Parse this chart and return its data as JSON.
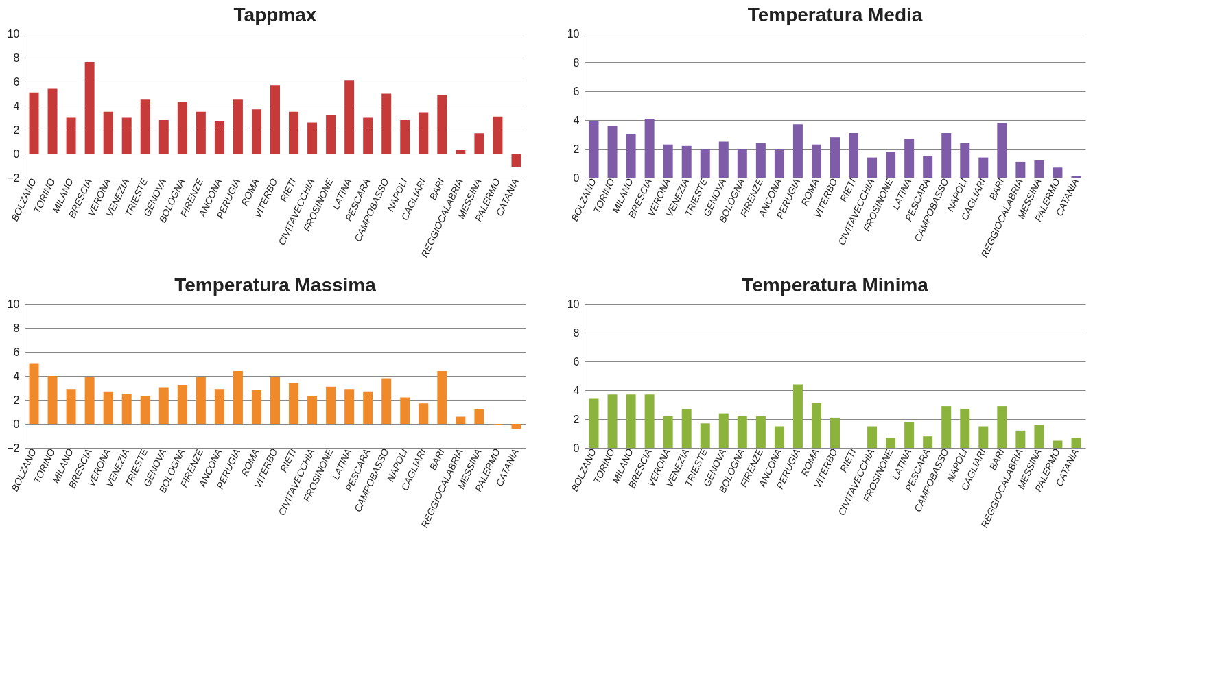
{
  "chart_data": [
    {
      "type": "bar",
      "title": "Tappmax",
      "categories": [
        "BOLZANO",
        "TORINO",
        "MILANO",
        "BRESCIA",
        "VERONA",
        "VENEZIA",
        "TRIESTE",
        "GENOVA",
        "BOLOGNA",
        "FIRENZE",
        "ANCONA",
        "PERUGIA",
        "ROMA",
        "VITERBO",
        "RIETI",
        "CIVITAVECCHIA",
        "FROSINONE",
        "LATINA",
        "PESCARA",
        "CAMPOBASSO",
        "NAPOLI",
        "CAGLIARI",
        "BARI",
        "REGGIOCALABRIA",
        "MESSINA",
        "PALERMO",
        "CATANIA"
      ],
      "values": [
        5.1,
        5.4,
        3.0,
        7.6,
        3.5,
        3.0,
        4.5,
        2.8,
        4.3,
        3.5,
        2.7,
        4.5,
        3.7,
        5.7,
        3.5,
        2.6,
        3.2,
        6.1,
        3.0,
        5.0,
        2.8,
        3.4,
        4.9,
        0.3,
        1.7,
        3.1,
        -1.1
      ],
      "color": "#c63a3a",
      "ylim": [
        -2,
        10
      ],
      "yticks": [
        -2,
        0,
        2,
        4,
        6,
        8,
        10
      ],
      "grid": "y"
    },
    {
      "type": "bar",
      "title": "Temperatura Media",
      "categories": [
        "BOLZANO",
        "TORINO",
        "MILANO",
        "BRESCIA",
        "VERONA",
        "VENEZIA",
        "TRIESTE",
        "GENOVA",
        "BOLOGNA",
        "FIRENZE",
        "ANCONA",
        "PERUGIA",
        "ROMA",
        "VITERBO",
        "RIETI",
        "CIVITAVECCHIA",
        "FROSINONE",
        "LATINA",
        "PESCARA",
        "CAMPOBASSO",
        "NAPOLI",
        "CAGLIARI",
        "BARI",
        "REGGIOCALABRIA",
        "MESSINA",
        "PALERMO",
        "CATANIA"
      ],
      "values": [
        3.9,
        3.6,
        3.0,
        4.1,
        2.3,
        2.2,
        2.0,
        2.5,
        2.0,
        2.4,
        2.0,
        3.7,
        2.3,
        2.8,
        3.1,
        1.4,
        1.8,
        2.7,
        1.5,
        3.1,
        2.4,
        1.4,
        3.8,
        1.1,
        1.2,
        0.7,
        0.1
      ],
      "color": "#7e5ca8",
      "ylim": [
        0,
        10
      ],
      "yticks": [
        0,
        2,
        4,
        6,
        8,
        10
      ],
      "grid": "y"
    },
    {
      "type": "bar",
      "title": "Temperatura Massima",
      "categories": [
        "BOLZANO",
        "TORINO",
        "MILANO",
        "BRESCIA",
        "VERONA",
        "VENEZIA",
        "TRIESTE",
        "GENOVA",
        "BOLOGNA",
        "FIRENZE",
        "ANCONA",
        "PERUGIA",
        "ROMA",
        "VITERBO",
        "RIETI",
        "CIVITAVECCHIA",
        "FROSINONE",
        "LATINA",
        "PESCARA",
        "CAMPOBASSO",
        "NAPOLI",
        "CAGLIARI",
        "BARI",
        "REGGIOCALABRIA",
        "MESSINA",
        "PALERMO",
        "CATANIA"
      ],
      "values": [
        5.0,
        4.0,
        2.9,
        3.9,
        2.7,
        2.5,
        2.3,
        3.0,
        3.2,
        3.9,
        2.9,
        4.4,
        2.8,
        3.9,
        3.4,
        2.3,
        3.1,
        2.9,
        2.7,
        3.8,
        2.2,
        1.7,
        4.4,
        0.6,
        1.2,
        -0.05,
        -0.4
      ],
      "color": "#f0892a",
      "ylim": [
        -2,
        10
      ],
      "yticks": [
        -2,
        0,
        2,
        4,
        6,
        8,
        10
      ],
      "grid": "y"
    },
    {
      "type": "bar",
      "title": "Temperatura Minima",
      "categories": [
        "BOLZANO",
        "TORINO",
        "MILANO",
        "BRESCIA",
        "VERONA",
        "VENEZIA",
        "TRIESTE",
        "GENOVA",
        "BOLOGNA",
        "FIRENZE",
        "ANCONA",
        "PERUGIA",
        "ROMA",
        "VITERBO",
        "RIETI",
        "CIVITAVECCHIA",
        "FROSINONE",
        "LATINA",
        "PESCARA",
        "CAMPOBASSO",
        "NAPOLI",
        "CAGLIARI",
        "BARI",
        "REGGIOCALABRIA",
        "MESSINA",
        "PALERMO",
        "CATANIA"
      ],
      "values": [
        3.4,
        3.7,
        3.7,
        3.7,
        2.2,
        2.7,
        1.7,
        2.4,
        2.2,
        2.2,
        1.5,
        4.4,
        3.1,
        2.1,
        null,
        1.5,
        0.7,
        1.8,
        0.8,
        2.9,
        2.7,
        1.5,
        2.9,
        1.2,
        1.6,
        0.5,
        0.7
      ],
      "color": "#8cb43c",
      "ylim": [
        0,
        10
      ],
      "yticks": [
        0,
        2,
        4,
        6,
        8,
        10
      ],
      "grid": "y"
    }
  ]
}
